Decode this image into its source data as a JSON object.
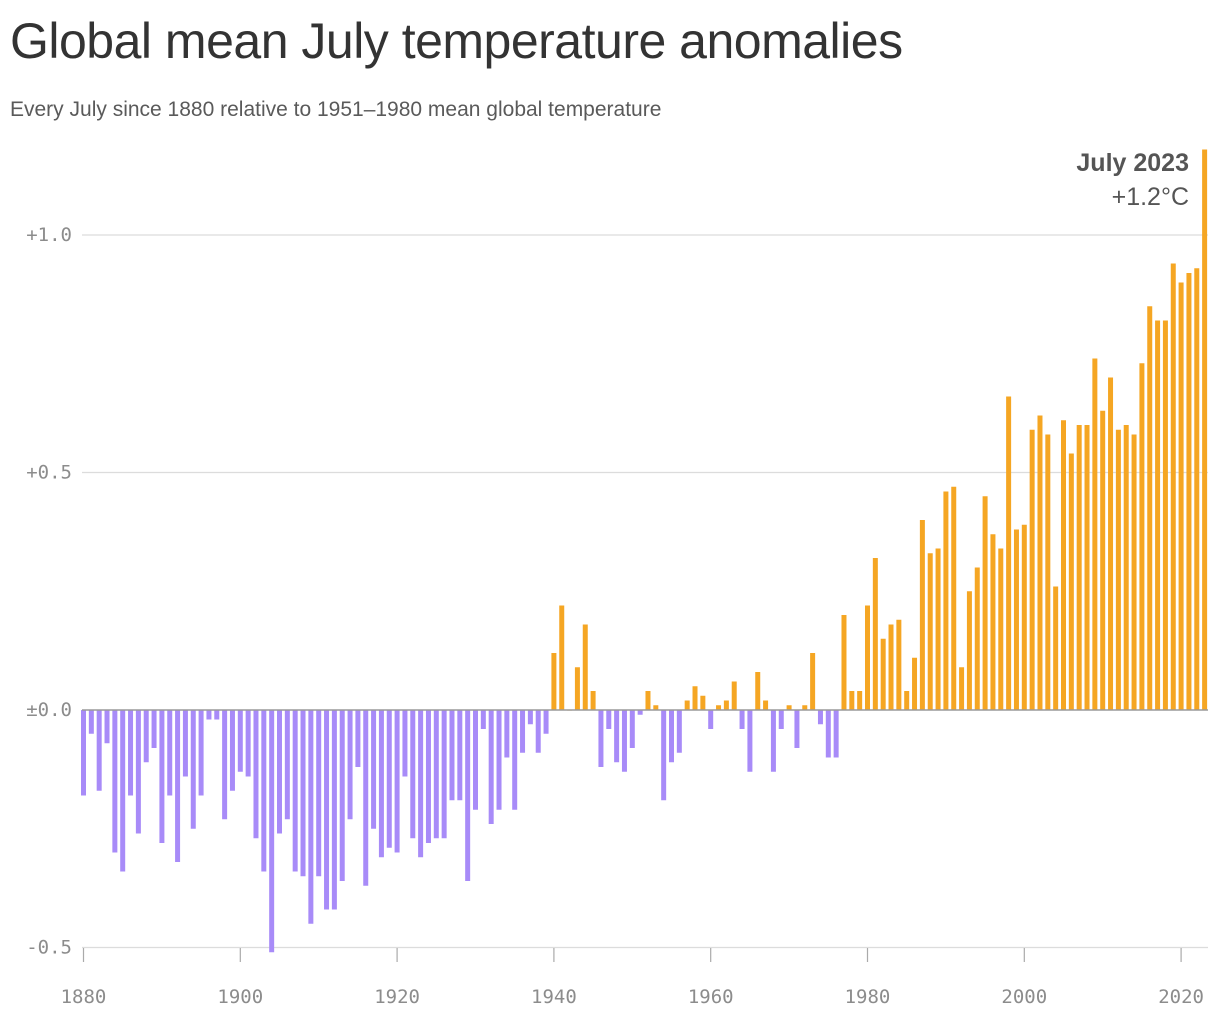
{
  "title": "Global mean July temperature anomalies",
  "subtitle": "Every July since 1880 relative to 1951–1980 mean global temperature",
  "colors": {
    "positive": "#f5a623",
    "negative": "#a88bf8",
    "grid": "#dcdcdc",
    "zero_line": "#9a9a9a",
    "text": "#333333"
  },
  "annotation": {
    "title": "July 2023",
    "value": "+1.2°C"
  },
  "chart_data": {
    "type": "bar",
    "title": "Global mean July temperature anomalies",
    "subtitle": "Every July since 1880 relative to 1951–1980 mean global temperature",
    "xlabel": "",
    "ylabel": "",
    "x_start": 1880,
    "x_end": 2023,
    "ylim": [
      -0.5,
      1.2
    ],
    "y_ticks": [
      {
        "value": -0.5,
        "label": "-0.5"
      },
      {
        "value": 0,
        "label": "±0.0"
      },
      {
        "value": 0.5,
        "label": "+0.5"
      },
      {
        "value": 1.0,
        "label": "+1.0"
      }
    ],
    "x_ticks": [
      1880,
      1900,
      1920,
      1940,
      1960,
      1980,
      2000,
      2020
    ],
    "grid": true,
    "legend": "none",
    "years": [
      1880,
      1881,
      1882,
      1883,
      1884,
      1885,
      1886,
      1887,
      1888,
      1889,
      1890,
      1891,
      1892,
      1893,
      1894,
      1895,
      1896,
      1897,
      1898,
      1899,
      1900,
      1901,
      1902,
      1903,
      1904,
      1905,
      1906,
      1907,
      1908,
      1909,
      1910,
      1911,
      1912,
      1913,
      1914,
      1915,
      1916,
      1917,
      1918,
      1919,
      1920,
      1921,
      1922,
      1923,
      1924,
      1925,
      1926,
      1927,
      1928,
      1929,
      1930,
      1931,
      1932,
      1933,
      1934,
      1935,
      1936,
      1937,
      1938,
      1939,
      1940,
      1941,
      1942,
      1943,
      1944,
      1945,
      1946,
      1947,
      1948,
      1949,
      1950,
      1951,
      1952,
      1953,
      1954,
      1955,
      1956,
      1957,
      1958,
      1959,
      1960,
      1961,
      1962,
      1963,
      1964,
      1965,
      1966,
      1967,
      1968,
      1969,
      1970,
      1971,
      1972,
      1973,
      1974,
      1975,
      1976,
      1977,
      1978,
      1979,
      1980,
      1981,
      1982,
      1983,
      1984,
      1985,
      1986,
      1987,
      1988,
      1989,
      1990,
      1991,
      1992,
      1993,
      1994,
      1995,
      1996,
      1997,
      1998,
      1999,
      2000,
      2001,
      2002,
      2003,
      2004,
      2005,
      2006,
      2007,
      2008,
      2009,
      2010,
      2011,
      2012,
      2013,
      2014,
      2015,
      2016,
      2017,
      2018,
      2019,
      2020,
      2021,
      2022,
      2023
    ],
    "values": [
      -0.18,
      -0.05,
      -0.17,
      -0.07,
      -0.3,
      -0.34,
      -0.18,
      -0.26,
      -0.11,
      -0.08,
      -0.28,
      -0.18,
      -0.32,
      -0.14,
      -0.25,
      -0.18,
      -0.02,
      -0.02,
      -0.23,
      -0.17,
      -0.13,
      -0.14,
      -0.27,
      -0.34,
      -0.51,
      -0.26,
      -0.23,
      -0.34,
      -0.35,
      -0.45,
      -0.35,
      -0.42,
      -0.42,
      -0.36,
      -0.23,
      -0.12,
      -0.37,
      -0.25,
      -0.31,
      -0.29,
      -0.3,
      -0.14,
      -0.27,
      -0.31,
      -0.28,
      -0.27,
      -0.27,
      -0.19,
      -0.19,
      -0.36,
      -0.21,
      -0.04,
      -0.24,
      -0.21,
      -0.1,
      -0.21,
      -0.09,
      -0.03,
      -0.09,
      -0.05,
      0.12,
      0.22,
      -0.0,
      0.09,
      0.18,
      0.04,
      -0.12,
      -0.04,
      -0.11,
      -0.13,
      -0.08,
      -0.01,
      0.04,
      0.01,
      -0.19,
      -0.11,
      -0.09,
      0.02,
      0.05,
      0.03,
      -0.04,
      0.01,
      0.02,
      0.06,
      -0.04,
      -0.13,
      0.08,
      0.02,
      -0.13,
      -0.04,
      0.01,
      -0.08,
      0.01,
      0.12,
      -0.03,
      -0.1,
      -0.1,
      0.2,
      0.04,
      0.04,
      0.22,
      0.32,
      0.15,
      0.18,
      0.19,
      0.04,
      0.11,
      0.4,
      0.33,
      0.34,
      0.46,
      0.47,
      0.09,
      0.25,
      0.3,
      0.45,
      0.37,
      0.34,
      0.66,
      0.38,
      0.39,
      0.59,
      0.62,
      0.58,
      0.26,
      0.61,
      0.54,
      0.6,
      0.6,
      0.74,
      0.63,
      0.7,
      0.59,
      0.6,
      0.58,
      0.73,
      0.85,
      0.82,
      0.82,
      0.94,
      0.9,
      0.92,
      0.93,
      1.18
    ]
  }
}
